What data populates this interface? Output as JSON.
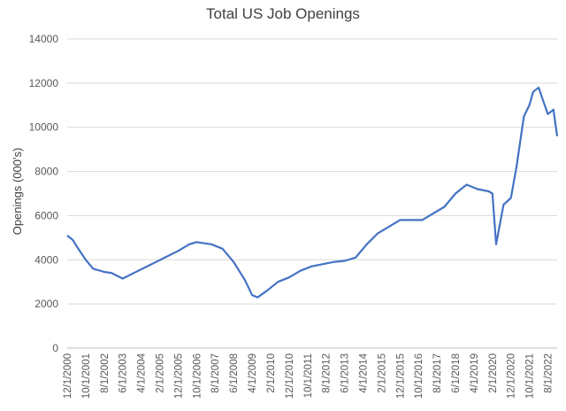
{
  "chart_data": {
    "type": "line",
    "title": "Total US Job Openings",
    "xlabel": "",
    "ylabel": "Openings (000's)",
    "ylim": [
      0,
      14000
    ],
    "yticks": [
      0,
      2000,
      4000,
      6000,
      8000,
      10000,
      12000,
      14000
    ],
    "ytick_labels": [
      "0",
      "2000",
      "4000",
      "6000",
      "8000",
      "10000",
      "12000",
      "14000"
    ],
    "xtick_labels": [
      "12/1/2000",
      "10/1/2001",
      "8/1/2002",
      "6/1/2003",
      "4/1/2004",
      "2/1/2005",
      "12/1/2005",
      "10/1/2006",
      "8/1/2007",
      "6/1/2008",
      "4/1/2009",
      "2/1/2010",
      "12/1/2010",
      "10/1/2011",
      "8/1/2012",
      "6/1/2013",
      "4/1/2014",
      "2/1/2015",
      "12/1/2015",
      "10/1/2016",
      "8/1/2017",
      "6/1/2018",
      "4/1/2019",
      "2/1/2020",
      "12/1/2020",
      "10/1/2021",
      "8/1/2022"
    ],
    "gridlines": true,
    "legend": "none",
    "line_color": "#4472C4",
    "series": [
      {
        "x": [
          "12/1/2000",
          "3/1/2001",
          "6/1/2001",
          "10/1/2001",
          "2/1/2002",
          "8/1/2002",
          "12/1/2002",
          "6/1/2003",
          "12/1/2003",
          "6/1/2004",
          "12/1/2004",
          "6/1/2005",
          "12/1/2005",
          "6/1/2006",
          "10/1/2006",
          "6/1/2007",
          "12/1/2007",
          "6/1/2008",
          "12/1/2008",
          "4/1/2009",
          "7/1/2009",
          "12/1/2009",
          "6/1/2010",
          "12/1/2010",
          "6/1/2011",
          "12/1/2011",
          "6/1/2012",
          "12/1/2012",
          "6/1/2013",
          "12/1/2013",
          "6/1/2014",
          "12/1/2014",
          "6/1/2015",
          "12/1/2015",
          "6/1/2016",
          "12/1/2016",
          "6/1/2017",
          "12/1/2017",
          "6/1/2018",
          "12/1/2018",
          "6/1/2019",
          "12/1/2019",
          "2/1/2020",
          "4/1/2020",
          "8/1/2020",
          "12/1/2020",
          "3/1/2021",
          "7/1/2021",
          "10/1/2021",
          "12/1/2021",
          "3/1/2022",
          "5/1/2022",
          "8/1/2022",
          "11/1/2022",
          "1/1/2023"
        ],
        "values": [
          5100,
          4900,
          4500,
          4000,
          3600,
          3450,
          3400,
          3150,
          3400,
          3650,
          3900,
          4150,
          4400,
          4700,
          4800,
          4700,
          4500,
          3900,
          3100,
          2400,
          2300,
          2600,
          3000,
          3200,
          3500,
          3700,
          3800,
          3900,
          3950,
          4100,
          4700,
          5200,
          5500,
          5800,
          5800,
          5800,
          6100,
          6400,
          7000,
          7400,
          7200,
          7100,
          7000,
          4700,
          6500,
          6800,
          8200,
          10500,
          11000,
          11600,
          11800,
          11300,
          10600,
          10800,
          9600
        ]
      }
    ]
  }
}
